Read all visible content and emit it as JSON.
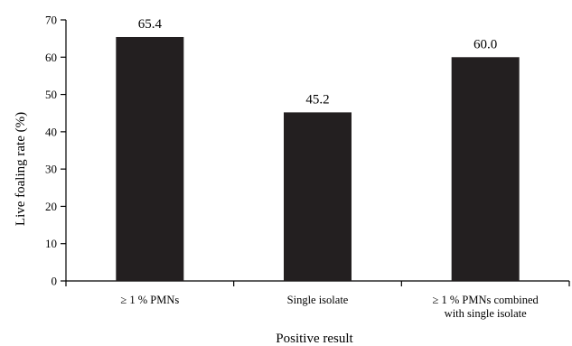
{
  "chart_data": {
    "type": "bar",
    "categories": [
      [
        "≥ 1 % PMNs"
      ],
      [
        "Single isolate"
      ],
      [
        "≥ 1 % PMNs combined",
        "with single isolate"
      ]
    ],
    "values": [
      65.4,
      45.2,
      60.0
    ],
    "data_labels": [
      "65.4",
      "45.2",
      "60.0"
    ],
    "title": "",
    "xlabel": "Positive result",
    "ylabel": "Live foaling rate (%)",
    "ylim": [
      0,
      70
    ],
    "yticks": [
      0,
      10,
      20,
      30,
      40,
      50,
      60,
      70
    ],
    "grid": false,
    "legend": "none",
    "colors": {
      "bar": "#231f20",
      "axis": "#000000"
    }
  }
}
